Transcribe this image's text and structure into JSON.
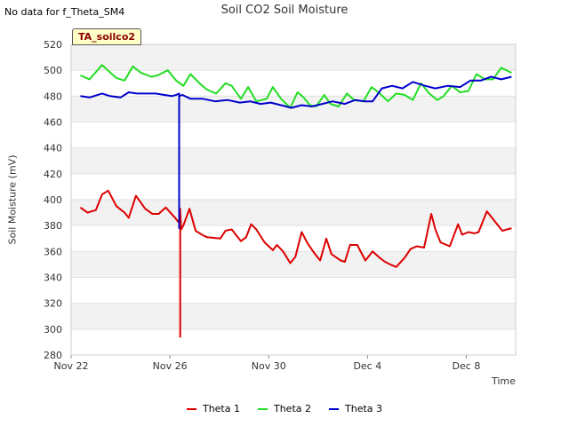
{
  "header": {
    "nodata_text": "No data for f_Theta_SM4",
    "tag_label": "TA_soilco2"
  },
  "chart_data": {
    "type": "line",
    "title": "Soil CO2 Soil Moisture",
    "xlabel": "Time",
    "ylabel": "Soil Moisture (mV)",
    "ylim": [
      280,
      520
    ],
    "yticks": [
      280,
      300,
      320,
      340,
      360,
      380,
      400,
      420,
      440,
      460,
      480,
      500,
      520
    ],
    "xlim": [
      "2023-11-22",
      "2023-12-10"
    ],
    "xticks": [
      {
        "label": "Nov 22",
        "value": "2023-11-22"
      },
      {
        "label": "Nov 26",
        "value": "2023-11-26"
      },
      {
        "label": "Nov 30",
        "value": "2023-11-30"
      },
      {
        "label": "Dec 4",
        "value": "2023-12-04"
      },
      {
        "label": "Dec 8",
        "value": "2023-12-08"
      }
    ],
    "grid": true,
    "legend_position": "bottom",
    "series": [
      {
        "name": "Theta 1",
        "color": "#dd0000",
        "x": [
          "2023-11-22T09:00",
          "2023-11-22T16:00",
          "2023-11-23T00:00",
          "2023-11-23T06:00",
          "2023-11-23T12:00",
          "2023-11-23T20:00",
          "2023-11-24T04:00",
          "2023-11-24T08:00",
          "2023-11-24T15:00",
          "2023-11-25T00:00",
          "2023-11-25T07:00",
          "2023-11-25T13:00",
          "2023-11-25T20:00",
          "2023-11-26T05:00",
          "2023-11-26T09:00",
          "2023-11-26T11:00",
          "2023-11-26T13:00",
          "2023-11-26T19:00",
          "2023-11-27T01:00",
          "2023-11-27T07:00",
          "2023-11-27T12:00",
          "2023-11-28T01:00",
          "2023-11-28T06:00",
          "2023-11-28T12:00",
          "2023-11-28T21:00",
          "2023-11-29T02:00",
          "2023-11-29T07:00",
          "2023-11-29T12:00",
          "2023-11-29T20:00",
          "2023-11-30T04:00",
          "2023-11-30T08:00",
          "2023-11-30T14:00",
          "2023-11-30T21:00",
          "2023-12-01T02:00",
          "2023-12-01T08:00",
          "2023-12-01T14:00",
          "2023-12-01T21:00",
          "2023-12-02T02:00",
          "2023-12-02T08:00",
          "2023-12-02T13:00",
          "2023-12-02T22:00",
          "2023-12-03T02:00",
          "2023-12-03T07:00",
          "2023-12-03T14:00",
          "2023-12-03T22:00",
          "2023-12-04T05:00",
          "2023-12-04T12:00",
          "2023-12-04T17:00",
          "2023-12-04T22:00",
          "2023-12-05T04:00",
          "2023-12-05T12:00",
          "2023-12-05T18:00",
          "2023-12-06T00:00",
          "2023-12-06T07:00",
          "2023-12-06T14:00",
          "2023-12-06T18:00",
          "2023-12-06T23:00",
          "2023-12-07T08:00",
          "2023-12-07T16:00",
          "2023-12-07T20:00",
          "2023-12-08T02:00",
          "2023-12-08T08:00",
          "2023-12-08T12:00",
          "2023-12-08T20:00",
          "2023-12-09T05:00",
          "2023-12-09T11:00",
          "2023-12-09T20:00"
        ],
        "y": [
          394,
          390,
          392,
          404,
          407,
          395,
          390,
          386,
          403,
          393,
          389,
          389,
          394,
          386,
          382,
          377,
          380,
          393,
          376,
          373,
          371,
          370,
          376,
          377,
          368,
          371,
          381,
          377,
          367,
          361,
          365,
          360,
          351,
          356,
          375,
          366,
          358,
          353,
          370,
          358,
          353,
          352,
          365,
          365,
          353,
          360,
          355,
          352,
          350,
          348,
          355,
          362,
          364,
          363,
          389,
          377,
          367,
          364,
          381,
          373,
          375,
          374,
          375,
          391,
          382,
          376,
          378
        ]
      },
      {
        "name": "Theta 2",
        "color": "#22dd22",
        "x": [
          "2023-11-22T09:00",
          "2023-11-22T18:00",
          "2023-11-23T06:00",
          "2023-11-23T20:00",
          "2023-11-24T04:00",
          "2023-11-24T12:00",
          "2023-11-24T20:00",
          "2023-11-25T06:00",
          "2023-11-25T12:00",
          "2023-11-25T22:00",
          "2023-11-26T06:00",
          "2023-11-26T13:00",
          "2023-11-26T20:00",
          "2023-11-27T06:00",
          "2023-11-27T12:00",
          "2023-11-27T21:00",
          "2023-11-28T06:00",
          "2023-11-28T12:00",
          "2023-11-28T21:00",
          "2023-11-29T04:00",
          "2023-11-29T12:00",
          "2023-11-29T22:00",
          "2023-11-30T04:00",
          "2023-11-30T12:00",
          "2023-11-30T21:00",
          "2023-12-01T04:00",
          "2023-12-01T10:00",
          "2023-12-01T16:00",
          "2023-12-01T22:00",
          "2023-12-02T06:00",
          "2023-12-02T12:00",
          "2023-12-02T20:00",
          "2023-12-03T04:00",
          "2023-12-03T11:00",
          "2023-12-03T20:00",
          "2023-12-04T04:00",
          "2023-12-04T12:00",
          "2023-12-04T20:00",
          "2023-12-05T04:00",
          "2023-12-05T12:00",
          "2023-12-05T20:00",
          "2023-12-06T04:00",
          "2023-12-06T12:00",
          "2023-12-06T20:00",
          "2023-12-07T02:00",
          "2023-12-07T10:00",
          "2023-12-07T18:00",
          "2023-12-08T02:00",
          "2023-12-08T10:00",
          "2023-12-08T18:00",
          "2023-12-09T02:00",
          "2023-12-09T10:00",
          "2023-12-09T20:00"
        ],
        "y": [
          496,
          493,
          504,
          494,
          492,
          503,
          498,
          495,
          496,
          500,
          492,
          488,
          497,
          489,
          485,
          482,
          490,
          488,
          478,
          487,
          476,
          478,
          487,
          478,
          471,
          483,
          479,
          473,
          472,
          481,
          474,
          472,
          482,
          477,
          476,
          487,
          482,
          476,
          482,
          481,
          477,
          490,
          482,
          477,
          480,
          488,
          483,
          484,
          497,
          493,
          493,
          502,
          498
        ]
      },
      {
        "name": "Theta 3",
        "color": "#0000cc",
        "x": [
          "2023-11-22T09:00",
          "2023-11-22T18:00",
          "2023-11-23T06:00",
          "2023-11-23T14:00",
          "2023-11-24T00:00",
          "2023-11-24T08:00",
          "2023-11-24T16:00",
          "2023-11-25T02:00",
          "2023-11-25T10:00",
          "2023-11-25T18:00",
          "2023-11-26T02:00",
          "2023-11-26T06:00",
          "2023-11-26T12:00",
          "2023-11-26T20:00",
          "2023-11-27T08:00",
          "2023-11-27T20:00",
          "2023-11-28T08:00",
          "2023-11-28T20:00",
          "2023-11-29T06:00",
          "2023-11-29T16:00",
          "2023-11-30T02:00",
          "2023-11-30T12:00",
          "2023-11-30T22:00",
          "2023-12-01T08:00",
          "2023-12-01T18:00",
          "2023-12-02T04:00",
          "2023-12-02T14:00",
          "2023-12-03T02:00",
          "2023-12-03T12:00",
          "2023-12-03T22:00",
          "2023-12-04T05:00",
          "2023-12-04T14:00",
          "2023-12-05T00:00",
          "2023-12-05T10:00",
          "2023-12-05T20:00",
          "2023-12-06T08:00",
          "2023-12-06T18:00",
          "2023-12-07T06:00",
          "2023-12-07T18:00",
          "2023-12-08T04:00",
          "2023-12-08T14:00",
          "2023-12-09T00:00",
          "2023-12-09T10:00",
          "2023-12-09T20:00"
        ],
        "y": [
          480,
          479,
          482,
          480,
          479,
          483,
          482,
          482,
          482,
          481,
          480,
          481,
          481,
          478,
          478,
          476,
          477,
          475,
          476,
          474,
          475,
          473,
          471,
          473,
          472,
          474,
          476,
          474,
          477,
          476,
          476,
          486,
          488,
          486,
          491,
          488,
          486,
          488,
          487,
          492,
          492,
          495,
          493,
          495
        ]
      }
    ],
    "annotations": [
      {
        "series": "Theta 3",
        "kind": "vertical-drop",
        "x": "2023-11-26T09:00",
        "from": 482,
        "to": 378
      },
      {
        "series": "Theta 1",
        "kind": "vertical-drop",
        "x": "2023-11-26T10:00",
        "from": 393,
        "to": 294
      }
    ]
  }
}
